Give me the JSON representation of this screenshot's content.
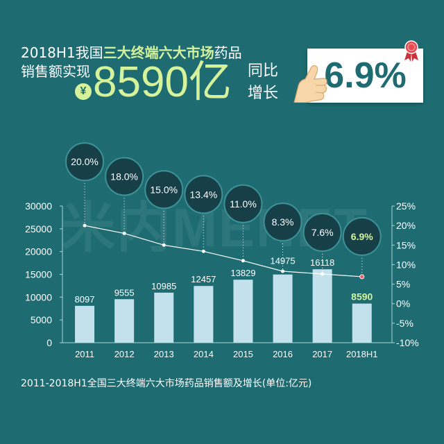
{
  "header": {
    "line1_prefix": "2018H1我国",
    "line1_highlight": "三大终端六大市场",
    "line1_suffix": "药品",
    "line2": "销售额实现",
    "currency_symbol": "¥",
    "big_value": "8590亿",
    "yoy_line1": "同比",
    "yoy_line2": "增长",
    "growth_value": "6.9%"
  },
  "watermark": "米内MENET",
  "icons": {
    "currency": "yen-icon",
    "hand": "pointing-hand-icon",
    "badge": "award-ribbon-icon"
  },
  "colors": {
    "background": "#1e6c72",
    "accent": "#d6f39c",
    "bar": "#c2e1ec",
    "bubble_fill": "#173f48",
    "bubble_stroke": "#3d9297",
    "axis": "#a9d6d8",
    "highlight_point": "#ee5b6b",
    "badge": "#e74a52"
  },
  "chart_data": {
    "type": "bar",
    "categories": [
      "2011",
      "2012",
      "2013",
      "2014",
      "2015",
      "2016",
      "2017",
      "2018H1"
    ],
    "series": [
      {
        "type": "bar",
        "values": [
          8097,
          9555,
          10985,
          12457,
          13829,
          14975,
          16118,
          8590
        ],
        "labels": [
          "8097",
          "9555",
          "10985",
          "12457",
          "13829",
          "14975",
          "16118",
          "8590"
        ],
        "highlight_index": 7
      },
      {
        "type": "line",
        "values": [
          20.0,
          18.0,
          15.0,
          13.4,
          11.0,
          8.3,
          7.6,
          6.9
        ],
        "labels": [
          "20.0%",
          "18.0%",
          "15.0%",
          "13.4%",
          "11.0%",
          "8.3%",
          "7.6%",
          "6.9%"
        ],
        "highlight_index": 7
      }
    ],
    "ylim": [
      0,
      30000
    ],
    "yticks": [
      0,
      5000,
      10000,
      15000,
      20000,
      25000,
      30000
    ],
    "ylim_right": [
      -10,
      25
    ],
    "yticks_right": [
      -10,
      -5,
      0,
      5,
      10,
      15,
      20,
      25
    ],
    "yticks_right_labels": [
      "-10%",
      "-5%",
      "0%",
      "5%",
      "10%",
      "15%",
      "20%",
      "25%"
    ],
    "grid": false
  },
  "caption": "2011-2018H1全国三大终端六大市场药品销售额及增长(单位:亿元)"
}
